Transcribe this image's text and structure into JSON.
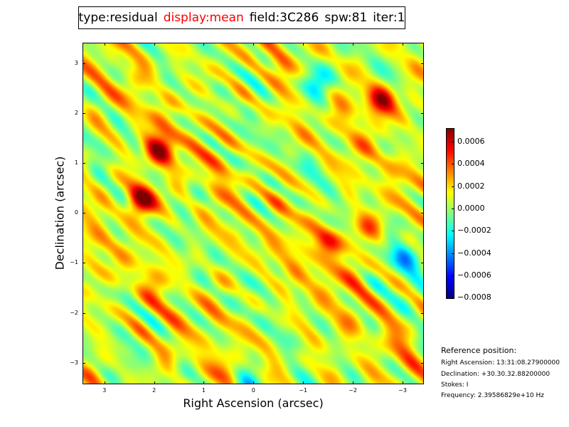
{
  "title": {
    "type": "type:residual",
    "display": "display:mean",
    "field": "field:3C286",
    "spw": "spw:81",
    "iter": "iter:1"
  },
  "reference": {
    "heading": "Reference position:",
    "ra": "Right Ascension: 13:31:08.27900000",
    "dec": "Declination: +30.30.32.88200000",
    "stokes": "Stokes: I",
    "frequency": "Frequency: 2.39586829e+10 Hz"
  },
  "colors": {
    "title_highlight": "#ff0000"
  },
  "chart_data": {
    "type": "heatmap",
    "colormap": "jet",
    "xlabel": "Right Ascension (arcsec)",
    "ylabel": "Declination (arcsec)",
    "xlim": [
      3.44,
      -3.43
    ],
    "ylim": [
      -3.43,
      3.41
    ],
    "xticks": [
      3,
      2,
      1,
      0,
      -1,
      -2,
      -3
    ],
    "xtick_labels": [
      "3",
      "2",
      "1",
      "0",
      "−1",
      "−2",
      "−3"
    ],
    "yticks": [
      3,
      2,
      1,
      0,
      -1,
      -2,
      -3
    ],
    "ytick_labels": [
      "3",
      "2",
      "1",
      "0",
      "−1",
      "−2",
      "−3"
    ],
    "colorbar": {
      "range": [
        -0.00081,
        0.00072
      ],
      "ticks": [
        0.0006,
        0.0004,
        0.0002,
        0.0,
        -0.0002,
        -0.0004,
        -0.0006,
        -0.0008
      ],
      "tick_labels": [
        "0.0006",
        "0.0004",
        "0.0002",
        "0.0000",
        "−0.0002",
        "−0.0004",
        "−0.0006",
        "−0.0008"
      ]
    }
  }
}
